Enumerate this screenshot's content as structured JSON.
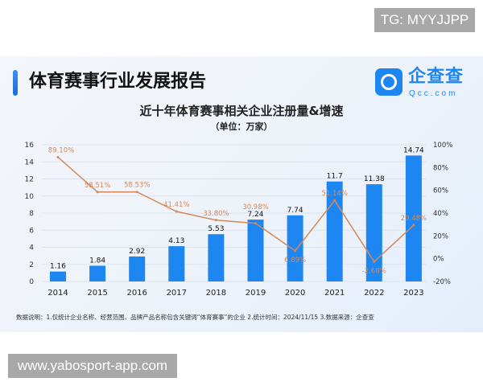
{
  "watermark_top": "TG: MYYJJPP",
  "watermark_bottom": "www.yabosport-app.com",
  "report_title": "体育赛事行业发展报告",
  "logo": {
    "name": "企查查",
    "domain": "Qcc.com",
    "color": "#1e86f0"
  },
  "note": "数据说明：1.仅统计企业名称、经营范围、品牌产品名称包含关键词“体育赛事”的企业  2.统计时间：2024/11/15   3.数据来源：企查查",
  "chart_data": {
    "type": "bar+line",
    "title": "近十年体育赛事相关企业注册量&增速",
    "subtitle": "（单位：万家）",
    "categories": [
      "2014",
      "2015",
      "2016",
      "2017",
      "2018",
      "2019",
      "2020",
      "2021",
      "2022",
      "2023"
    ],
    "series": [
      {
        "type": "bar",
        "axis": "left",
        "color": "#1e86f0",
        "values": [
          1.16,
          1.84,
          2.92,
          4.13,
          5.53,
          7.24,
          7.74,
          11.7,
          11.38,
          14.74
        ],
        "labels": [
          "1.16",
          "1.84",
          "2.92",
          "4.13",
          "5.53",
          "7.24",
          "7.74",
          "11.7",
          "11.38",
          "14.74"
        ]
      },
      {
        "type": "line",
        "axis": "right",
        "color": "#d4895a",
        "values": [
          89.1,
          58.51,
          58.53,
          41.41,
          33.8,
          30.98,
          6.89,
          51.14,
          -2.68,
          29.48
        ],
        "labels": [
          "89.10%",
          "58.51%",
          "58.53%",
          "41.41%",
          "33.80%",
          "30.98%",
          "6.89%",
          "51.14%",
          "-2.68%",
          "29.48%"
        ]
      }
    ],
    "left_axis": {
      "range": [
        0,
        16
      ],
      "ticks": [
        "0",
        "2",
        "4",
        "6",
        "8",
        "10",
        "12",
        "14",
        "16"
      ]
    },
    "right_axis": {
      "range": [
        -20,
        100
      ],
      "ticks": [
        "-20%",
        "0%",
        "20%",
        "40%",
        "60%",
        "80%",
        "100%"
      ]
    },
    "grid": true
  }
}
